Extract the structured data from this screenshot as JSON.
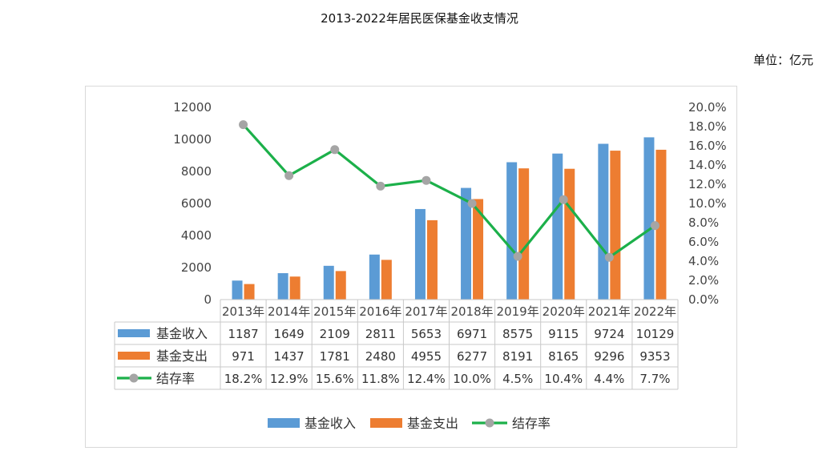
{
  "title": "2013-2022年居民医保基金收支情况",
  "unit": "单位：亿元",
  "colors": {
    "income": "#5B9BD5",
    "expense": "#ED7D31",
    "rate_line": "#1CB04A",
    "rate_marker": "#A5A5A5"
  },
  "chart_data": {
    "type": "bar",
    "categories": [
      "2013年",
      "2014年",
      "2015年",
      "2016年",
      "2017年",
      "2018年",
      "2019年",
      "2020年",
      "2021年",
      "2022年"
    ],
    "series": [
      {
        "name": "基金收入",
        "type": "bar",
        "axis": "left",
        "values": [
          1187,
          1649,
          2109,
          2811,
          5653,
          6971,
          8575,
          9115,
          9724,
          10129
        ]
      },
      {
        "name": "基金支出",
        "type": "bar",
        "axis": "left",
        "values": [
          971,
          1437,
          1781,
          2480,
          4955,
          6277,
          8191,
          8165,
          9296,
          9353
        ]
      },
      {
        "name": "结存率",
        "type": "line",
        "axis": "right",
        "values": [
          18.2,
          12.9,
          15.6,
          11.8,
          12.4,
          10.0,
          4.5,
          10.4,
          4.4,
          7.7
        ],
        "labels": [
          "18.2%",
          "12.9%",
          "15.6%",
          "11.8%",
          "12.4%",
          "10.0%",
          "4.5%",
          "10.4%",
          "4.4%",
          "7.7%"
        ]
      }
    ],
    "y_left": {
      "min": 0,
      "max": 12000,
      "ticks": [
        "0",
        "2000",
        "4000",
        "6000",
        "8000",
        "10000",
        "12000"
      ]
    },
    "y_right": {
      "min": 0,
      "max": 20,
      "ticks": [
        "0.0%",
        "2.0%",
        "4.0%",
        "6.0%",
        "8.0%",
        "10.0%",
        "12.0%",
        "14.0%",
        "16.0%",
        "18.0%",
        "20.0%"
      ]
    },
    "data_table": true,
    "legend": "bottom",
    "grid": false
  }
}
